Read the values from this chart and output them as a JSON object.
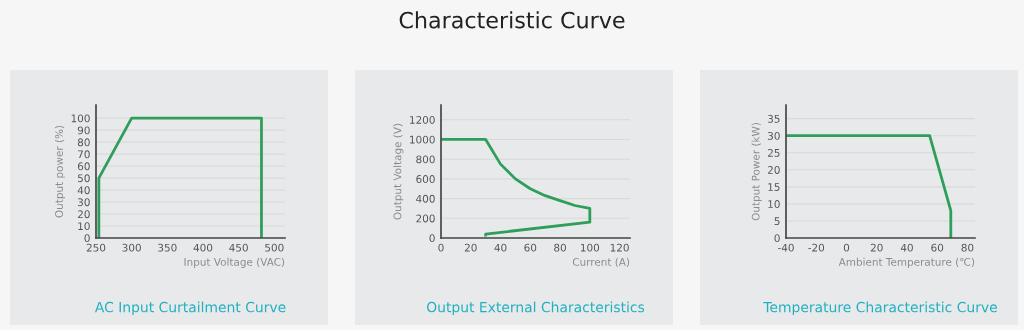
{
  "chart_data": [
    {
      "type": "line",
      "title": "AC Input Curtailment Curve",
      "annotations": [
        "Characteristic Curve"
      ],
      "xlabel": "Input Voltage (VAC)",
      "ylabel": "Output power (%)",
      "x": [
        254,
        254,
        300,
        482,
        482
      ],
      "series": [
        {
          "color": "#2e9e5b",
          "values": [
            0,
            50,
            100,
            100,
            0
          ]
        }
      ],
      "xlim": [
        250,
        515
      ],
      "ylim": [
        0,
        111
      ],
      "xticks": [
        250,
        300,
        350,
        400,
        450,
        500
      ],
      "yticks": [
        0,
        10,
        20,
        30,
        40,
        50,
        60,
        70,
        80,
        90,
        100
      ],
      "grid": "y"
    },
    {
      "type": "line",
      "title": "Output External Characteristics",
      "xlabel": "Current (A)",
      "ylabel": "Output Voltage (V)",
      "x": [
        0,
        30,
        40,
        50,
        60,
        70,
        80,
        90,
        100,
        100,
        30,
        30
      ],
      "series": [
        {
          "color": "#2e9e5b",
          "values": [
            1000,
            1000,
            750,
            600,
            500,
            430,
            380,
            330,
            300,
            160,
            40,
            30
          ]
        }
      ],
      "xlim": [
        0,
        127
      ],
      "ylim": [
        0,
        1350
      ],
      "xticks": [
        0,
        20,
        40,
        60,
        80,
        100,
        120
      ],
      "yticks": [
        0,
        200,
        400,
        600,
        800,
        1000,
        1200
      ],
      "grid": "y"
    },
    {
      "type": "line",
      "title": "Temperature Characteristic Curve",
      "xlabel": "Ambient Temperature (℃)",
      "ylabel": "Output Power (kW)",
      "x": [
        -40,
        55,
        69,
        69
      ],
      "series": [
        {
          "color": "#2e9e5b",
          "values": [
            30,
            30,
            8,
            0
          ]
        }
      ],
      "xlim": [
        -40,
        85
      ],
      "ylim": [
        0,
        39
      ],
      "xticks": [
        -40,
        -20,
        0,
        20,
        40,
        60,
        80
      ],
      "yticks": [
        0,
        5,
        10,
        15,
        20,
        25,
        30,
        35
      ],
      "grid": "y"
    }
  ]
}
